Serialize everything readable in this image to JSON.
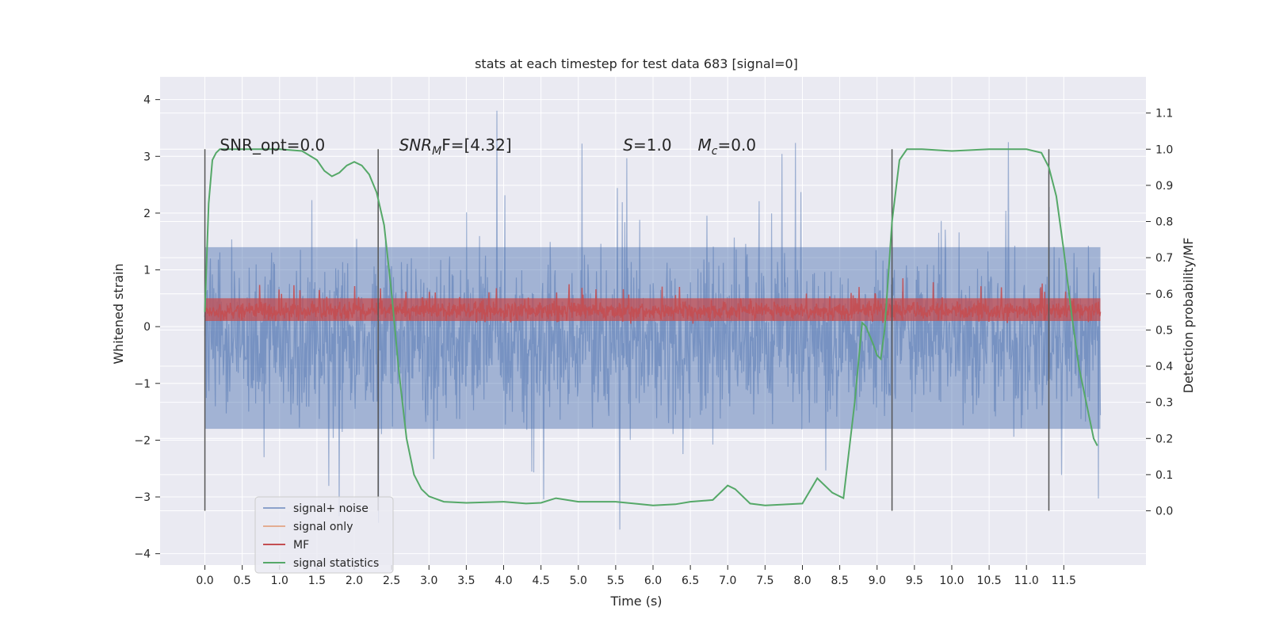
{
  "chart_data": {
    "type": "line",
    "title": "stats at each timestep for test data 683 [signal=0]",
    "xlabel": "Time (s)",
    "ylabel": "Whitened strain",
    "ylabel_right": "Detection probability/MF",
    "xlim": [
      -0.6,
      12.6
    ],
    "ylim": [
      -4.2,
      4.4
    ],
    "ylim_right": [
      -0.15,
      1.2
    ],
    "x_ticks": [
      "0.0",
      "0.5",
      "1.0",
      "1.5",
      "2.0",
      "2.5",
      "3.0",
      "3.5",
      "4.0",
      "4.5",
      "5.0",
      "5.5",
      "6.0",
      "6.5",
      "7.0",
      "7.5",
      "8.0",
      "8.5",
      "9.0",
      "9.5",
      "10.0",
      "10.5",
      "11.0",
      "11.5"
    ],
    "y_ticks": [
      "4",
      "3",
      "2",
      "1",
      "0",
      "−1",
      "−2",
      "−3",
      "−4"
    ],
    "y_ticks_right": [
      "1.1",
      "1.0",
      "0.9",
      "0.8",
      "0.7",
      "0.6",
      "0.5",
      "0.4",
      "0.3",
      "0.2",
      "0.1",
      "0.0"
    ],
    "grid": true,
    "legend_position": "lower-left",
    "colors": {
      "background": "#eaeaf2",
      "grid": "#ffffff",
      "noise": "#4c72b0",
      "signal_only": "#dd8452",
      "mf": "#c44e52",
      "stats": "#55a868",
      "vlines": "#555555"
    },
    "series": [
      {
        "name": "signal+ noise",
        "style": "dense noise band",
        "x_range": [
          0.0,
          11.99
        ],
        "typical_range": [
          -1.8,
          1.4
        ],
        "extreme_range": [
          -3.8,
          4.1
        ]
      },
      {
        "name": "signal only",
        "values": []
      },
      {
        "name": "MF",
        "style": "dense noise band",
        "x_range": [
          0.0,
          11.99
        ],
        "typical_range": [
          0.05,
          0.6
        ],
        "max": 1.0
      },
      {
        "name": "signal statistics",
        "axis": "right",
        "x": [
          0.0,
          0.05,
          0.1,
          0.15,
          0.2,
          0.3,
          0.5,
          0.8,
          1.0,
          1.3,
          1.5,
          1.6,
          1.7,
          1.8,
          1.9,
          2.0,
          2.1,
          2.2,
          2.3,
          2.4,
          2.5,
          2.6,
          2.7,
          2.8,
          2.9,
          3.0,
          3.2,
          3.5,
          4.0,
          4.3,
          4.5,
          4.7,
          5.0,
          5.5,
          6.0,
          6.3,
          6.5,
          6.8,
          7.0,
          7.1,
          7.3,
          7.5,
          8.0,
          8.2,
          8.4,
          8.55,
          8.7,
          8.8,
          8.85,
          8.95,
          9.0,
          9.05,
          9.1,
          9.2,
          9.3,
          9.4,
          9.6,
          10.0,
          10.5,
          11.0,
          11.2,
          11.3,
          11.4,
          11.5,
          11.6,
          11.7,
          11.8,
          11.9,
          11.95
        ],
        "y": [
          0.55,
          0.85,
          0.97,
          0.99,
          1.0,
          1.0,
          1.0,
          1.0,
          1.0,
          0.995,
          0.97,
          0.94,
          0.925,
          0.935,
          0.955,
          0.965,
          0.955,
          0.93,
          0.88,
          0.79,
          0.6,
          0.38,
          0.2,
          0.1,
          0.06,
          0.04,
          0.025,
          0.022,
          0.025,
          0.02,
          0.022,
          0.035,
          0.025,
          0.025,
          0.015,
          0.018,
          0.025,
          0.03,
          0.07,
          0.06,
          0.02,
          0.015,
          0.02,
          0.09,
          0.05,
          0.035,
          0.3,
          0.52,
          0.51,
          0.46,
          0.43,
          0.42,
          0.5,
          0.8,
          0.97,
          1.0,
          1.0,
          0.995,
          1.0,
          1.0,
          0.99,
          0.95,
          0.87,
          0.72,
          0.55,
          0.4,
          0.3,
          0.2,
          0.18
        ]
      }
    ],
    "vertical_lines_x": [
      0.0,
      2.32,
      9.2,
      11.3
    ],
    "annotations": [
      {
        "text": "SNR_opt=0.0",
        "x": 0.2
      },
      {
        "text_main": "SNR",
        "text_sub": "M",
        "text_after": "F=[4.32]",
        "x": 2.6
      },
      {
        "text_main": "S",
        "text_after": "=1.0",
        "x": 5.6
      },
      {
        "text_main": "M",
        "text_sub": "c",
        "text_after": "=0.0",
        "x": 6.6
      }
    ]
  }
}
